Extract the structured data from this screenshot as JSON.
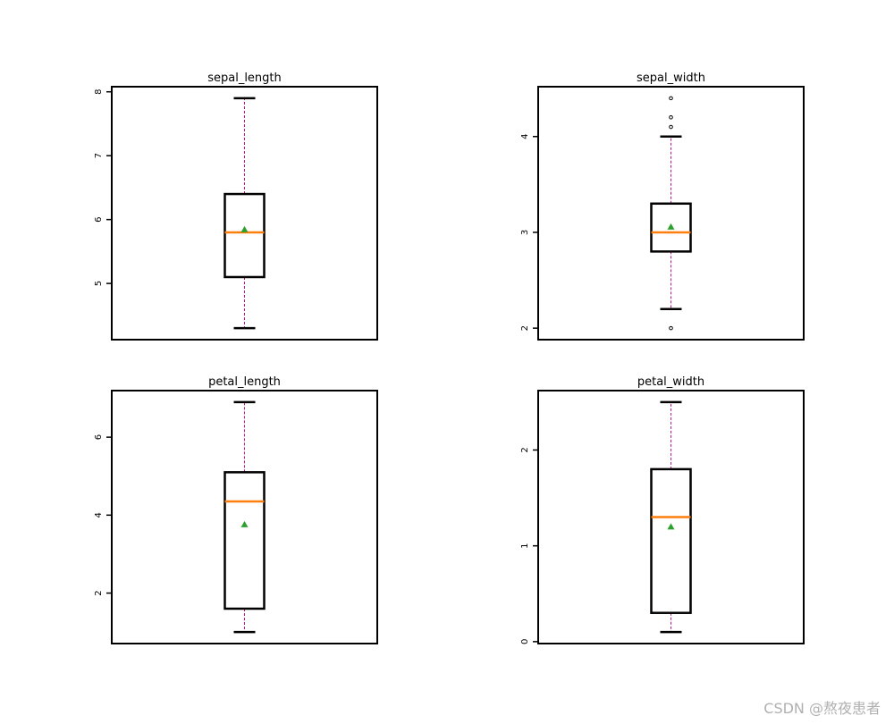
{
  "chart_data": [
    {
      "type": "box",
      "title": "sepal_length",
      "whislo": 4.3,
      "q1": 5.1,
      "med": 5.8,
      "q3": 6.4,
      "whishi": 7.9,
      "mean": 5.843,
      "fliers": [],
      "ylim": [
        4.12,
        8.08
      ],
      "yticks": [
        5,
        6,
        7,
        8
      ],
      "box_color": "#000000",
      "median_color": "#ff7f0e",
      "mean_color": "#2ca02c",
      "whisker_color": "#c71585"
    },
    {
      "type": "box",
      "title": "sepal_width",
      "whislo": 2.2,
      "q1": 2.8,
      "med": 3.0,
      "q3": 3.3,
      "whishi": 4.0,
      "mean": 3.057,
      "fliers": [
        4.4,
        4.1,
        4.2,
        2.0
      ],
      "ylim": [
        1.88,
        4.52
      ],
      "yticks": [
        2,
        3,
        4
      ],
      "box_color": "#000000",
      "median_color": "#ff7f0e",
      "mean_color": "#2ca02c",
      "whisker_color": "#c71585"
    },
    {
      "type": "box",
      "title": "petal_length",
      "whislo": 1.0,
      "q1": 1.6,
      "med": 4.35,
      "q3": 5.1,
      "whishi": 6.9,
      "mean": 3.758,
      "fliers": [],
      "ylim": [
        0.705,
        7.195
      ],
      "yticks": [
        2,
        4,
        6
      ],
      "box_color": "#000000",
      "median_color": "#ff7f0e",
      "mean_color": "#2ca02c",
      "whisker_color": "#c71585"
    },
    {
      "type": "box",
      "title": "petal_width",
      "whislo": 0.1,
      "q1": 0.3,
      "med": 1.3,
      "q3": 1.8,
      "whishi": 2.5,
      "mean": 1.199,
      "fliers": [],
      "ylim": [
        -0.02,
        2.62
      ],
      "yticks": [
        0,
        1,
        2
      ],
      "box_color": "#000000",
      "median_color": "#ff7f0e",
      "mean_color": "#2ca02c",
      "whisker_color": "#c71585"
    }
  ],
  "watermark": "CSDN @熬夜患者"
}
